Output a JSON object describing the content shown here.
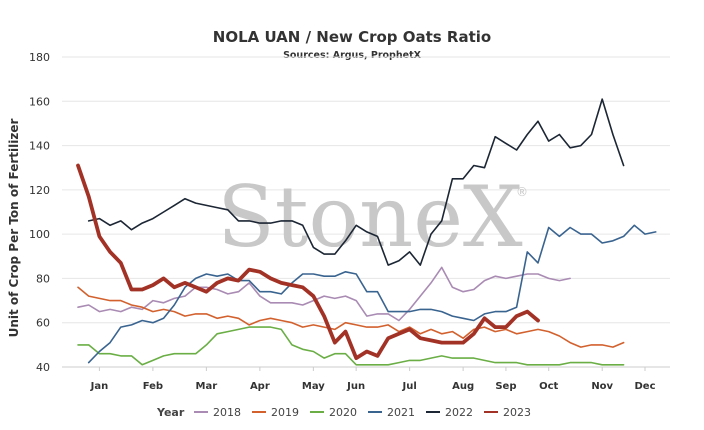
{
  "chart_data": {
    "type": "line",
    "title": "NOLA UAN / New Crop Oats Ratio",
    "subtitle": "Sources: Argus, ProphetX",
    "ylabel": "Unit of Crop Per Ton of Fertilizer",
    "xlabel": "",
    "ylim": [
      40,
      180
    ],
    "yticks": [
      40,
      60,
      80,
      100,
      120,
      140,
      160,
      180
    ],
    "xlim": [
      1,
      52
    ],
    "month_ticks": [
      {
        "label": "Jan",
        "week": 3
      },
      {
        "label": "Feb",
        "week": 8
      },
      {
        "label": "Mar",
        "week": 13
      },
      {
        "label": "Apr",
        "week": 18
      },
      {
        "label": "May",
        "week": 23
      },
      {
        "label": "Jun",
        "week": 27
      },
      {
        "label": "Jul",
        "week": 32
      },
      {
        "label": "Aug",
        "week": 37
      },
      {
        "label": "Sep",
        "week": 41
      },
      {
        "label": "Oct",
        "week": 45
      },
      {
        "label": "Nov",
        "week": 50
      },
      {
        "label": "Dec",
        "week": 54
      }
    ],
    "grid": true,
    "legend_title": "Year",
    "legend_position": "bottom",
    "watermark": "StoneX",
    "watermark_mark": "®",
    "series": [
      {
        "name": "2018",
        "color": "#a98bb3",
        "width": 1.6,
        "x_start": 1,
        "values": [
          67,
          68,
          65,
          66,
          65,
          67,
          66,
          70,
          69,
          71,
          72,
          76,
          76,
          75,
          73,
          74,
          78,
          72,
          69,
          69,
          69,
          68,
          70,
          72,
          71,
          72,
          70,
          63,
          64,
          64,
          61,
          66,
          72,
          78,
          85,
          76,
          74,
          75,
          79,
          81,
          80,
          81,
          82,
          82,
          80,
          79,
          80
        ]
      },
      {
        "name": "2019",
        "color": "#d2612e",
        "width": 1.6,
        "x_start": 1,
        "values": [
          76,
          72,
          71,
          70,
          70,
          68,
          67,
          65,
          66,
          65,
          63,
          64,
          64,
          62,
          63,
          62,
          59,
          61,
          62,
          61,
          60,
          58,
          59,
          58,
          57,
          60,
          59,
          58,
          58,
          59,
          56,
          58,
          55,
          57,
          55,
          56,
          53,
          57,
          58,
          56,
          57,
          55,
          56,
          57,
          56,
          54,
          51,
          49,
          50,
          50,
          49,
          51
        ]
      },
      {
        "name": "2020",
        "color": "#6aae45",
        "width": 1.6,
        "x_start": 1,
        "values": [
          50,
          50,
          46,
          46,
          45,
          45,
          41,
          43,
          45,
          46,
          46,
          46,
          50,
          55,
          56,
          57,
          58,
          58,
          58,
          57,
          50,
          48,
          47,
          44,
          46,
          46,
          41,
          41,
          41,
          41,
          42,
          43,
          43,
          44,
          45,
          44,
          44,
          44,
          43,
          42,
          42,
          42,
          41,
          41,
          41,
          41,
          42,
          42,
          42,
          41,
          41,
          41
        ]
      },
      {
        "name": "2021",
        "color": "#3a6490",
        "width": 1.6,
        "x_start": 2,
        "values": [
          42,
          47,
          51,
          58,
          59,
          61,
          60,
          62,
          68,
          76,
          80,
          82,
          81,
          82,
          79,
          79,
          74,
          74,
          73,
          78,
          82,
          82,
          81,
          81,
          83,
          82,
          74,
          74,
          65,
          65,
          65,
          66,
          66,
          65,
          63,
          62,
          61,
          64,
          65,
          65,
          67,
          92,
          87,
          103,
          99,
          103,
          100,
          100,
          96,
          97,
          99,
          104,
          100,
          101
        ]
      },
      {
        "name": "2022",
        "color": "#1c2634",
        "width": 1.6,
        "x_start": 2,
        "values": [
          106,
          107,
          104,
          106,
          102,
          105,
          107,
          110,
          113,
          116,
          114,
          113,
          112,
          111,
          106,
          106,
          105,
          105,
          106,
          106,
          104,
          94,
          91,
          91,
          97,
          104,
          101,
          99,
          86,
          88,
          92,
          86,
          100,
          106,
          125,
          125,
          131,
          130,
          144,
          141,
          138,
          145,
          151,
          142,
          145,
          139,
          140,
          145,
          161,
          145,
          131
        ]
      },
      {
        "name": "2023",
        "color": "#a33226",
        "width": 3.8,
        "x_start": 1,
        "values": [
          131,
          117,
          99,
          92,
          87,
          75,
          75,
          77,
          80,
          76,
          78,
          76,
          74,
          78,
          80,
          79,
          84,
          83,
          80,
          78,
          77,
          76,
          72,
          63,
          51,
          56,
          44,
          47,
          45,
          53,
          55,
          57,
          53,
          52,
          51,
          51,
          51,
          55,
          62,
          58,
          58,
          63,
          65,
          61
        ]
      }
    ]
  }
}
